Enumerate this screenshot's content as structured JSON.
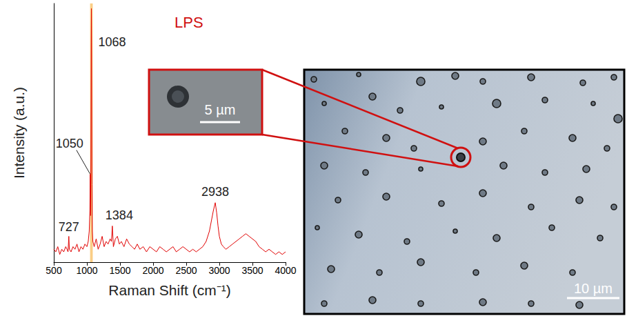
{
  "chart_data": {
    "type": "line",
    "title": "LPS",
    "x_label": "Raman Shift (cm⁻¹)",
    "y_label": "Intensity (a.u.)",
    "color": "#e00000",
    "tick_labels": "x",
    "grid": false,
    "xlim": [
      500,
      4000
    ],
    "xticks": [
      500,
      1000,
      1500,
      2000,
      2500,
      3000,
      3500,
      4000
    ],
    "ylim": [
      0,
      100
    ],
    "band": [
      1048,
      1088
    ],
    "peaks": [
      {
        "x": 1068,
        "y": 98
      },
      {
        "x": 1050,
        "y": 34
      },
      {
        "x": 727,
        "y": 10
      },
      {
        "x": 1384,
        "y": 14
      },
      {
        "x": 2938,
        "y": 23
      }
    ],
    "x": [
      500,
      530,
      560,
      590,
      620,
      650,
      680,
      700,
      715,
      727,
      735,
      760,
      790,
      820,
      850,
      880,
      910,
      940,
      970,
      1000,
      1020,
      1035,
      1045,
      1050,
      1055,
      1060,
      1065,
      1068,
      1071,
      1076,
      1082,
      1090,
      1110,
      1140,
      1170,
      1200,
      1230,
      1260,
      1290,
      1320,
      1350,
      1370,
      1384,
      1400,
      1430,
      1460,
      1490,
      1520,
      1560,
      1600,
      1640,
      1680,
      1720,
      1760,
      1800,
      1850,
      1900,
      1950,
      2000,
      2050,
      2100,
      2150,
      2200,
      2250,
      2300,
      2350,
      2400,
      2450,
      2500,
      2550,
      2600,
      2650,
      2700,
      2750,
      2800,
      2850,
      2880,
      2910,
      2938,
      2960,
      2980,
      3000,
      3030,
      3060,
      3100,
      3150,
      3200,
      3250,
      3300,
      3350,
      3400,
      3450,
      3500,
      3550,
      3600,
      3650,
      3700,
      3750,
      3800,
      3850,
      3900,
      3950,
      4000
    ],
    "values": [
      5,
      4,
      6,
      3,
      5,
      4,
      6,
      5,
      4,
      10,
      5,
      4,
      6,
      5,
      7,
      4,
      6,
      5,
      7,
      6,
      8,
      12,
      20,
      34,
      18,
      40,
      85,
      98,
      80,
      30,
      12,
      8,
      6,
      9,
      5,
      7,
      10,
      6,
      8,
      7,
      9,
      8,
      14,
      6,
      9,
      10,
      7,
      8,
      6,
      9,
      7,
      6,
      5,
      7,
      5,
      6,
      4,
      6,
      5,
      4,
      6,
      5,
      4,
      5,
      6,
      4,
      5,
      6,
      5,
      4,
      5,
      4,
      5,
      6,
      8,
      12,
      16,
      20,
      23,
      19,
      14,
      10,
      7,
      6,
      5,
      6,
      7,
      8,
      9,
      10,
      11,
      10,
      9,
      8,
      6,
      5,
      4,
      5,
      4,
      3,
      4,
      3,
      4
    ]
  },
  "micrograph": {
    "inset_scale_label": "5 µm",
    "scale_label": "10 µm"
  }
}
